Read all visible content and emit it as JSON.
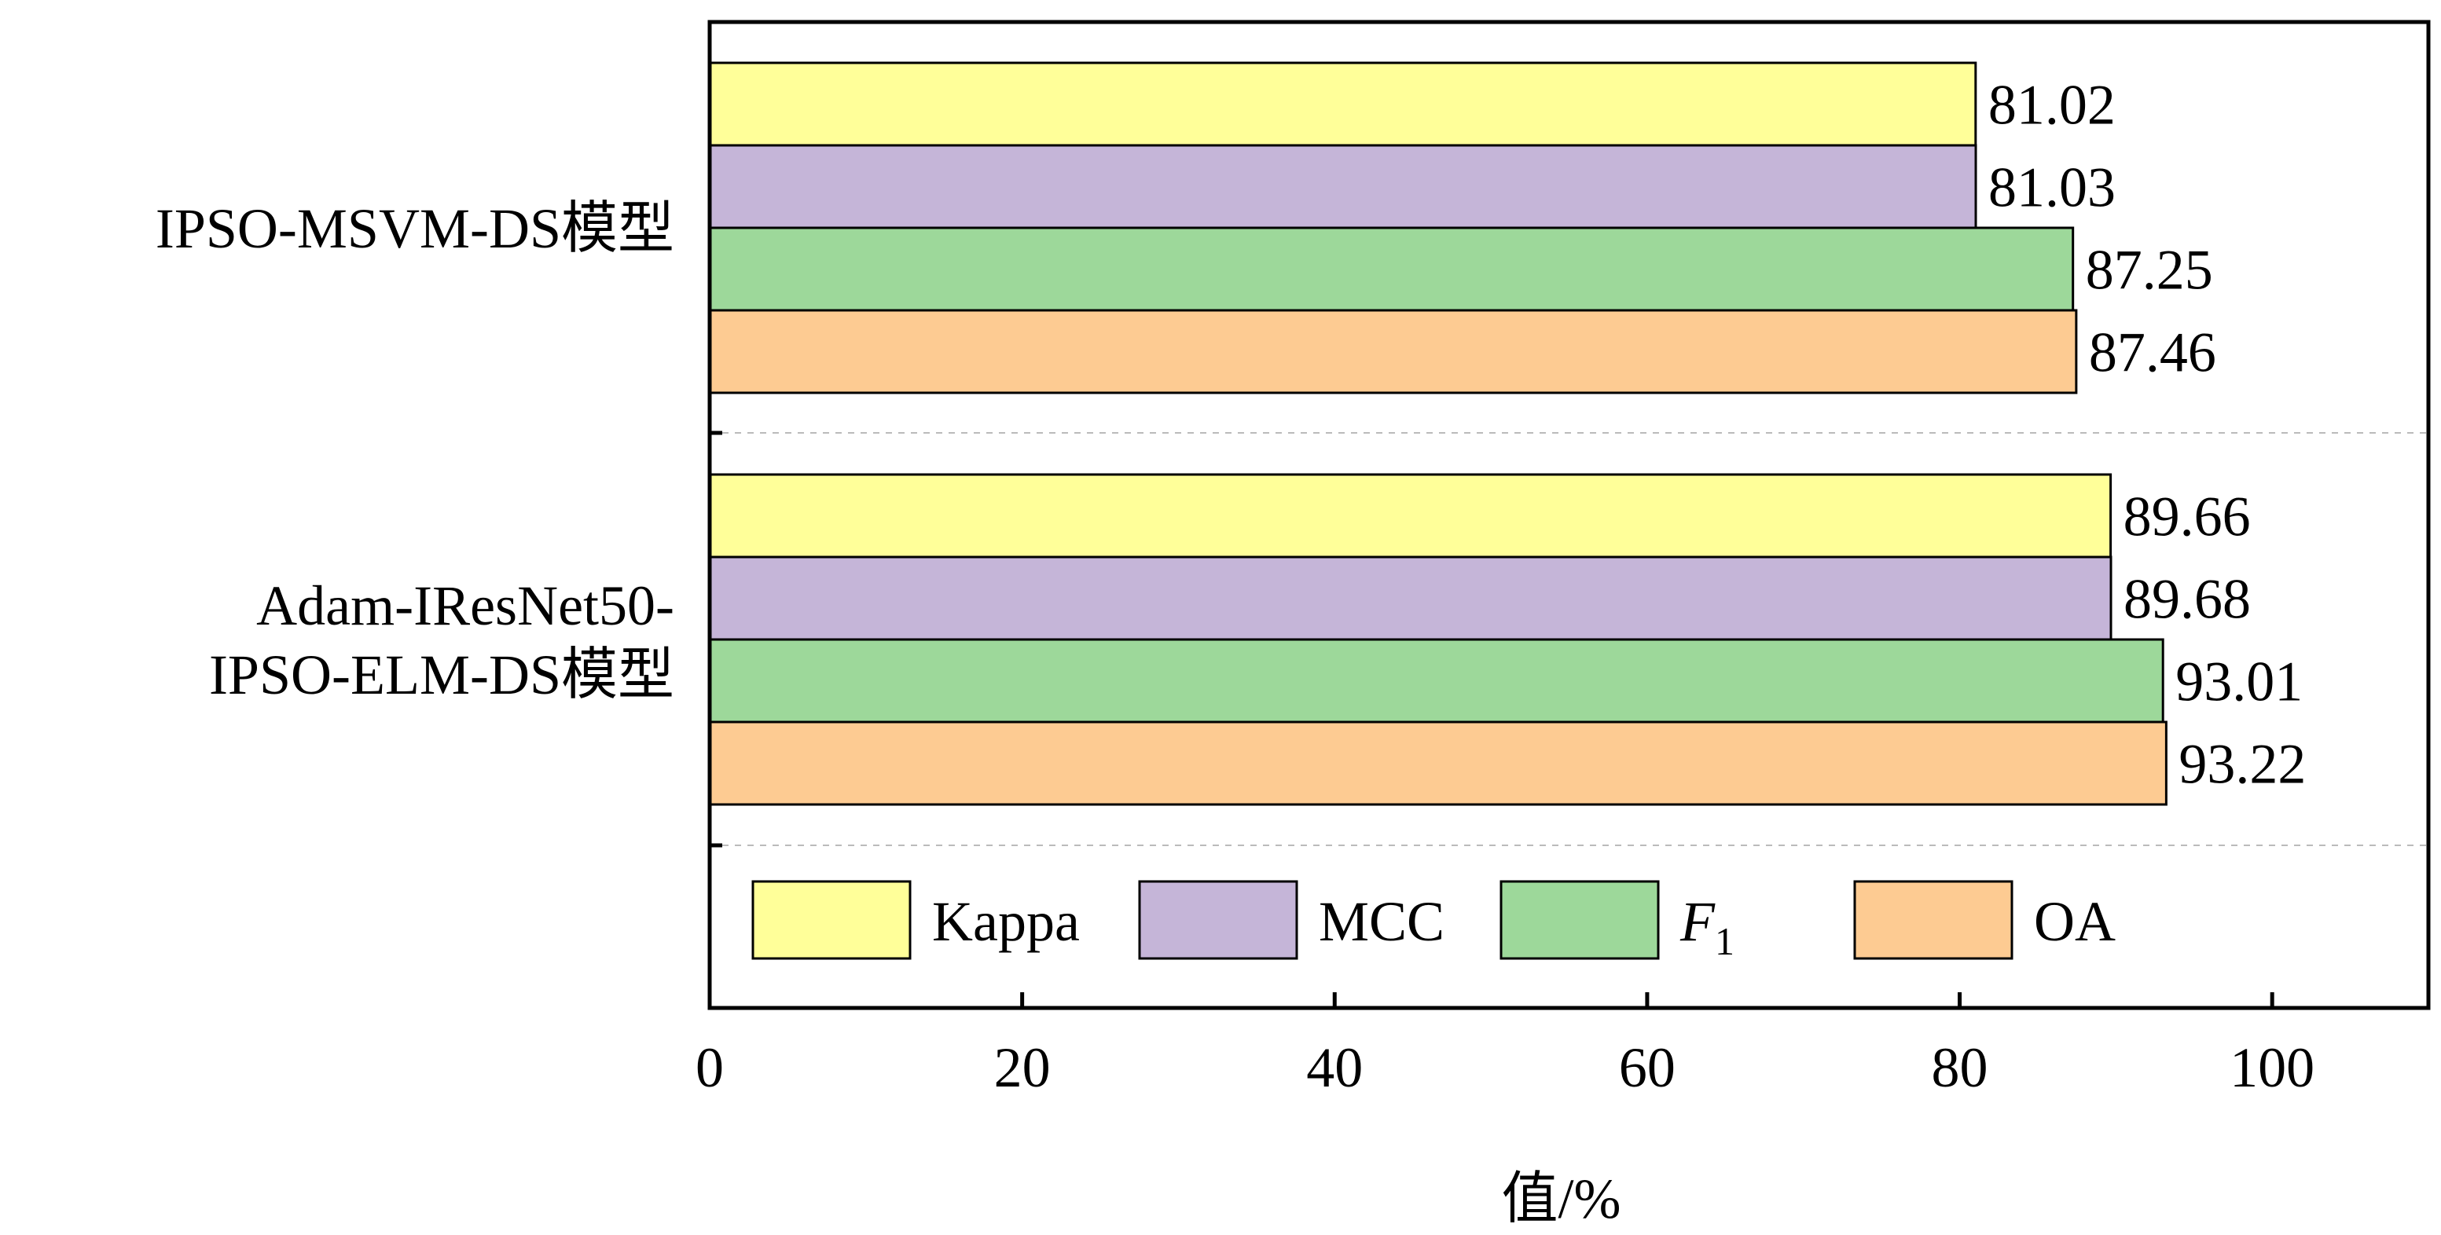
{
  "chart_data": {
    "type": "bar",
    "orientation": "horizontal",
    "categories": [
      [
        "IPSO-MSVM-DS模型"
      ],
      [
        "Adam-IResNet50-",
        "IPSO-ELM-DS模型"
      ]
    ],
    "series": [
      {
        "name": "Kappa",
        "values": [
          81.02,
          89.66
        ],
        "color": "#FFFF99"
      },
      {
        "name": "MCC",
        "values": [
          81.03,
          89.68
        ],
        "color": "#C5B5D8"
      },
      {
        "name": "F1",
        "values": [
          87.25,
          93.01
        ],
        "color": "#9DD89A"
      },
      {
        "name": "OA",
        "values": [
          87.46,
          93.22
        ],
        "color": "#FDCB92"
      }
    ],
    "value_labels": [
      [
        "81.02",
        "89.66"
      ],
      [
        "81.03",
        "89.68"
      ],
      [
        "87.25",
        "93.01"
      ],
      [
        "87.46",
        "93.22"
      ]
    ],
    "xlabel": "值/%",
    "xlim": [
      0,
      110
    ],
    "xticks": [
      0,
      20,
      40,
      60,
      80,
      100
    ],
    "xtick_labels": [
      "0",
      "20",
      "40",
      "60",
      "80",
      "100"
    ],
    "legend": {
      "placement": "bottom-inside",
      "entries": [
        {
          "label": "Kappa",
          "color": "#FFFF99"
        },
        {
          "label": "MCC",
          "color": "#C5B5D8"
        },
        {
          "label": "F",
          "subscript": "1",
          "color": "#9DD89A",
          "italic": true
        },
        {
          "label": "OA",
          "color": "#FDCB92"
        }
      ]
    },
    "gridlines": "dashed separators between groups"
  }
}
